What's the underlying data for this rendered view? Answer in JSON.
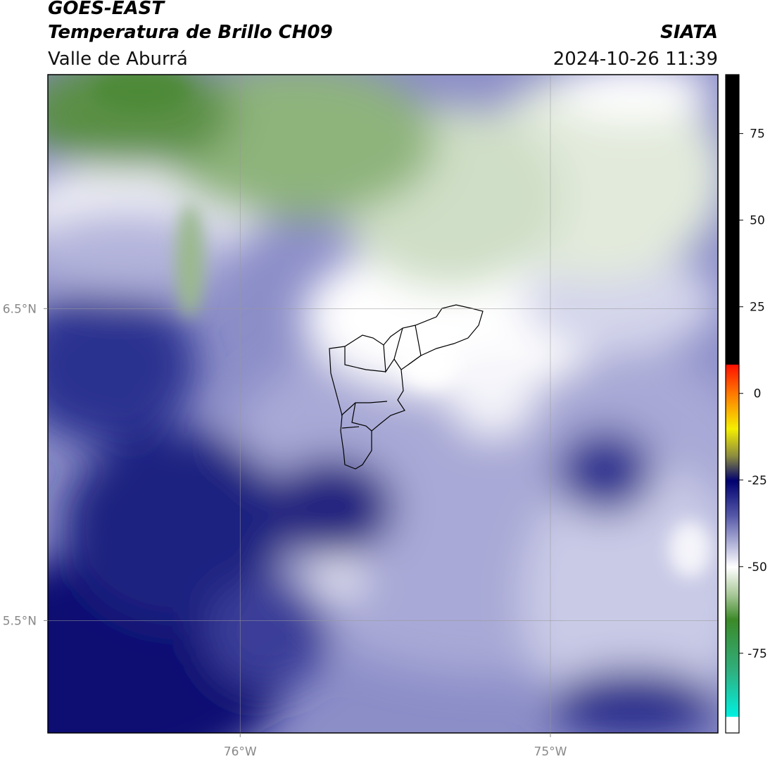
{
  "map": {
    "title": "GOES-EAST",
    "subtitle": "Temperatura de Brillo CH09",
    "region": "Valle de Aburrá",
    "source": "SIATA",
    "timestamp": "2024-10-26 11:39",
    "xlim": [
      -76.62,
      -74.46
    ],
    "ylim": [
      5.14,
      7.25
    ],
    "xticks": [
      {
        "value": -76,
        "label": "76°W"
      },
      {
        "value": -75,
        "label": "75°W"
      }
    ],
    "yticks": [
      {
        "value": 6.5,
        "label": "6.5°N"
      },
      {
        "value": 5.5,
        "label": "5.5°N"
      }
    ],
    "grid": true
  },
  "colorbar": {
    "lim": [
      -98,
      92
    ],
    "ticks": [
      75,
      50,
      25,
      0,
      -25,
      -50,
      -75
    ]
  }
}
